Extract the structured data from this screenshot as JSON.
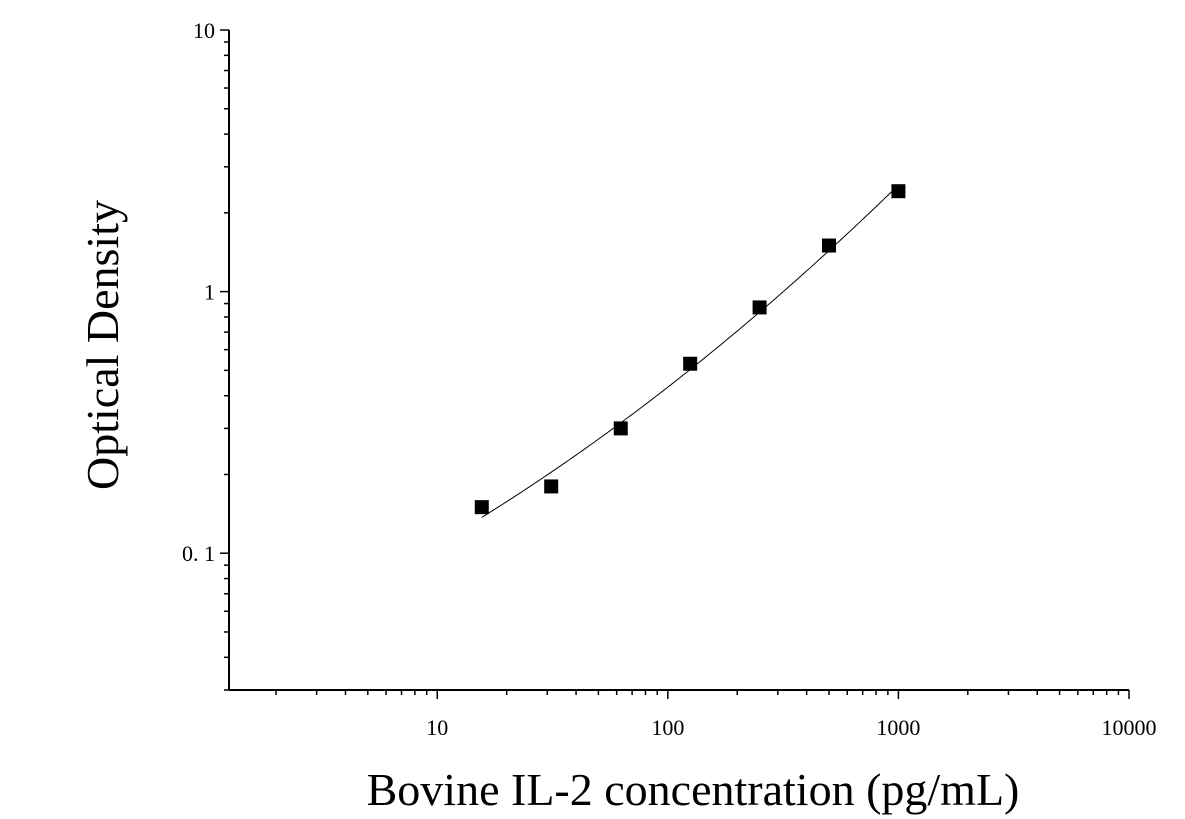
{
  "chart_data": {
    "type": "scatter",
    "xlabel": "Bovine IL-2 concentration (pg/mL)",
    "ylabel": "Optical Density",
    "x_scale": "log",
    "y_scale": "log",
    "xlim": [
      1.25,
      10000
    ],
    "ylim": [
      0.03,
      10
    ],
    "x_ticks": [
      {
        "value": 10,
        "label": "10"
      },
      {
        "value": 100,
        "label": "100"
      },
      {
        "value": 1000,
        "label": "1000"
      },
      {
        "value": 10000,
        "label": "10000"
      }
    ],
    "y_ticks": [
      {
        "value": 0.1,
        "label": "0. 1"
      },
      {
        "value": 1,
        "label": "1"
      },
      {
        "value": 10,
        "label": "10"
      }
    ],
    "grid": false,
    "legend": "none",
    "marker": "square",
    "color": "#000000",
    "points": [
      {
        "x": 15.6,
        "y": 0.15
      },
      {
        "x": 31.2,
        "y": 0.18
      },
      {
        "x": 62.5,
        "y": 0.3
      },
      {
        "x": 125,
        "y": 0.53
      },
      {
        "x": 250,
        "y": 0.87
      },
      {
        "x": 500,
        "y": 1.5
      },
      {
        "x": 1000,
        "y": 2.42
      }
    ],
    "fit_curve": {
      "type": "smooth",
      "x_range": [
        15.6,
        1000
      ]
    }
  }
}
